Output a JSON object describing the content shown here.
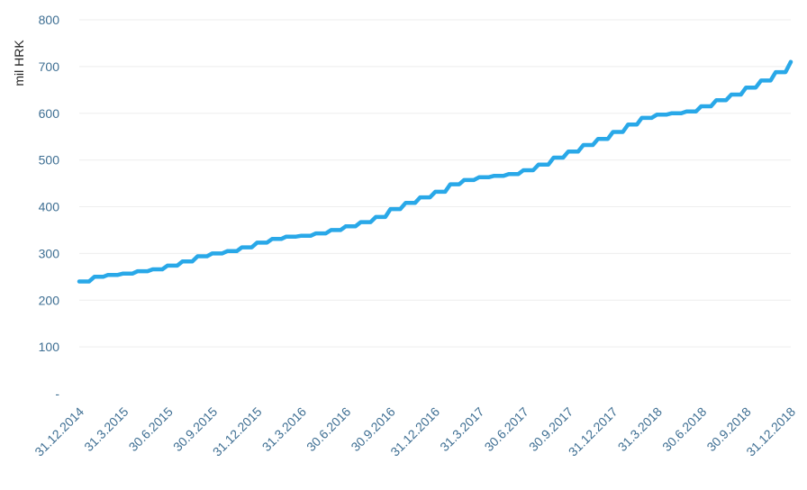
{
  "chart_data": {
    "type": "line",
    "ylabel": "mil HRK",
    "ylim": [
      0,
      800
    ],
    "yticks": [
      "-",
      "100",
      "200",
      "300",
      "400",
      "500",
      "600",
      "700",
      "800"
    ],
    "x_tick_labels": [
      "31.12.2014",
      "31.3.2015",
      "30.6.2015",
      "30.9.2015",
      "31.12.2015",
      "31.3.2016",
      "30.6.2016",
      "30.9.2016",
      "31.12.2016",
      "31.3.2017",
      "30.6.2017",
      "30.9.2017",
      "31.12.2017",
      "31.3.2018",
      "30.6.2018",
      "30.9.2018",
      "31.12.2018"
    ],
    "grid": true,
    "series": [
      {
        "color": "#29a8e8",
        "x": [
          "2014-12-31",
          "2015-01-31",
          "2015-02-28",
          "2015-03-31",
          "2015-04-30",
          "2015-05-31",
          "2015-06-30",
          "2015-07-31",
          "2015-08-31",
          "2015-09-30",
          "2015-10-31",
          "2015-11-30",
          "2015-12-31",
          "2016-01-31",
          "2016-02-29",
          "2016-03-31",
          "2016-04-30",
          "2016-05-31",
          "2016-06-30",
          "2016-07-31",
          "2016-08-31",
          "2016-09-30",
          "2016-10-31",
          "2016-11-30",
          "2016-12-31",
          "2017-01-31",
          "2017-02-28",
          "2017-03-31",
          "2017-04-30",
          "2017-05-31",
          "2017-06-30",
          "2017-07-31",
          "2017-08-31",
          "2017-09-30",
          "2017-10-31",
          "2017-11-30",
          "2017-12-31",
          "2018-01-31",
          "2018-02-28",
          "2018-03-31",
          "2018-04-30",
          "2018-05-31",
          "2018-06-30",
          "2018-07-31",
          "2018-08-31",
          "2018-09-30",
          "2018-10-31",
          "2018-11-30",
          "2018-12-31"
        ],
        "values": [
          240,
          250,
          254,
          257,
          262,
          266,
          274,
          283,
          294,
          300,
          305,
          313,
          323,
          331,
          336,
          338,
          343,
          350,
          358,
          367,
          378,
          395,
          408,
          420,
          432,
          448,
          457,
          463,
          466,
          470,
          478,
          490,
          505,
          518,
          532,
          545,
          560,
          576,
          590,
          597,
          600,
          604,
          615,
          628,
          640,
          655,
          670,
          688,
          710
        ]
      }
    ]
  }
}
